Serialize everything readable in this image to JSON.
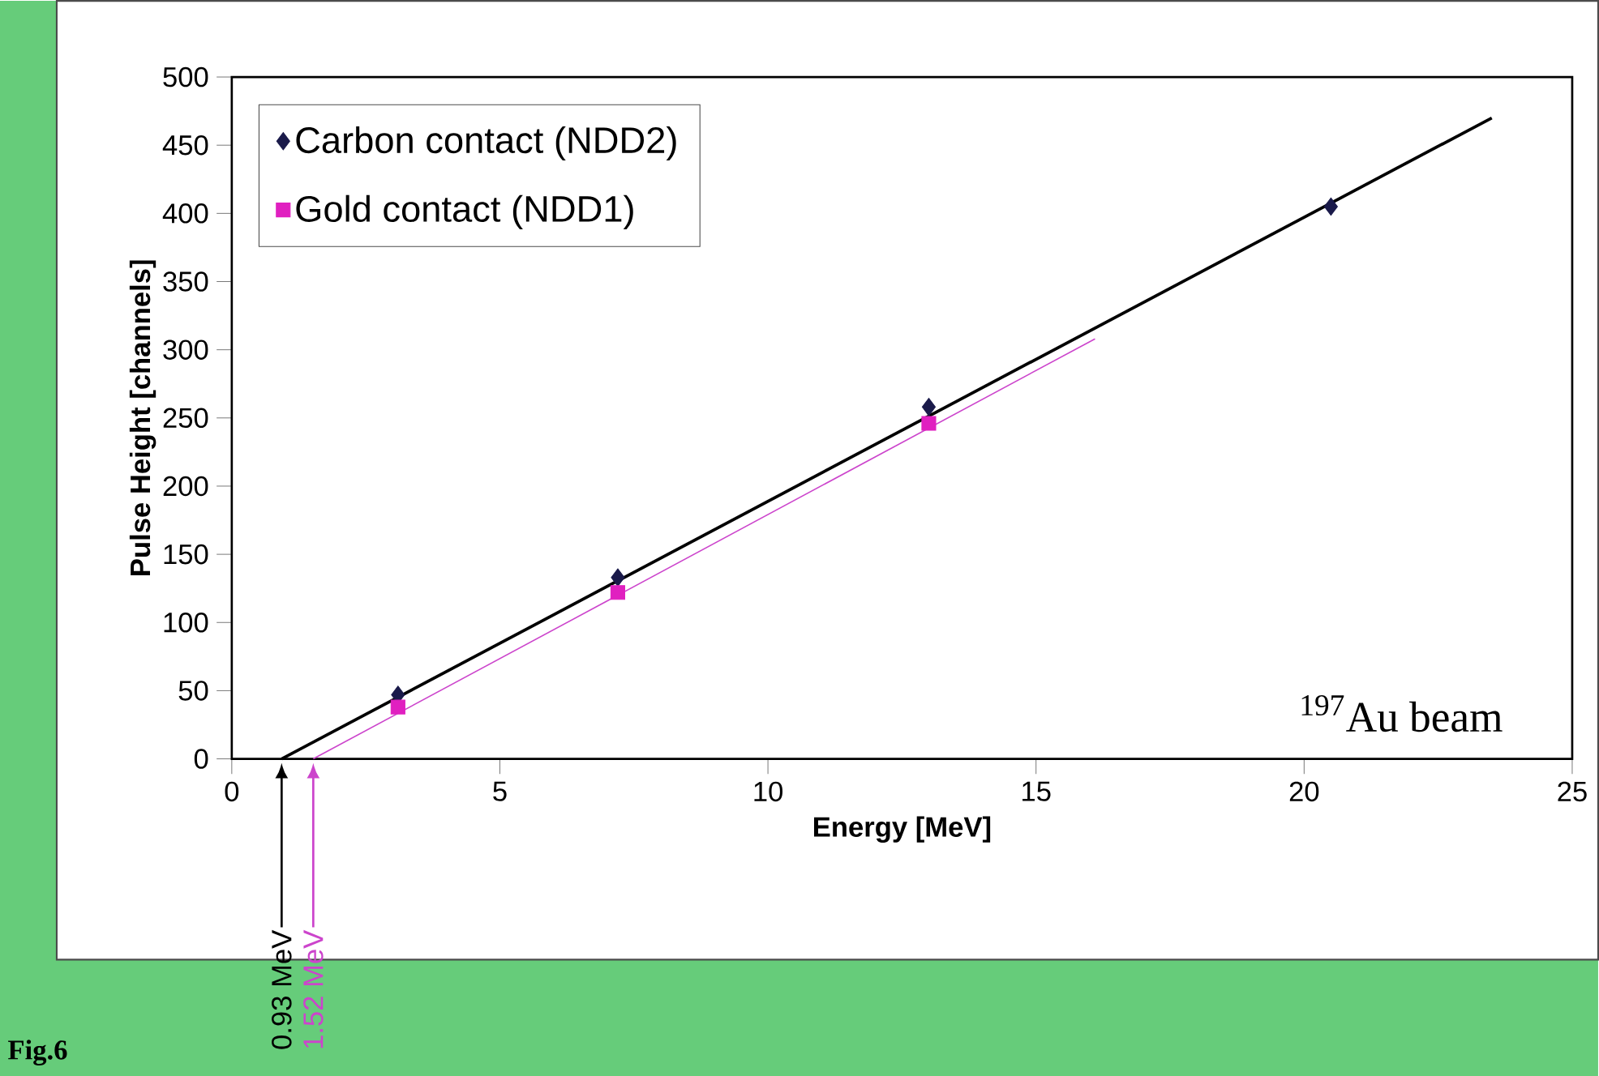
{
  "chart_data": {
    "type": "scatter",
    "xlabel": "Energy [MeV]",
    "ylabel": "Pulse Height [channels]",
    "xlim": [
      0,
      25
    ],
    "ylim": [
      0,
      500
    ],
    "xticks": [
      0,
      5,
      10,
      15,
      20,
      25
    ],
    "yticks": [
      0,
      50,
      100,
      150,
      200,
      250,
      300,
      350,
      400,
      450,
      500
    ],
    "legend": "top left",
    "series": [
      {
        "name": "Carbon contact (NDD2)",
        "color": "#1a1a4a",
        "marker": "diamond",
        "x": [
          3.1,
          7.2,
          13.0,
          20.5
        ],
        "values": [
          47,
          133,
          258,
          405
        ]
      },
      {
        "name": "Gold contact (NDD1)",
        "color": "#e020c0",
        "marker": "square",
        "x": [
          3.1,
          7.2,
          13.0
        ],
        "values": [
          38,
          122,
          246
        ]
      },
      {
        "type": "line",
        "color": "#000000",
        "marker": "none",
        "x": [
          0.93,
          23.5
        ],
        "values": [
          0,
          470
        ]
      },
      {
        "type": "line",
        "color": "#cc44cc",
        "marker": "none",
        "x": [
          1.52,
          16.1
        ],
        "values": [
          0,
          308
        ]
      }
    ],
    "annotations": [
      "0.93 MeV",
      "1.52 MeV",
      "$^{197}$Au beam",
      "Fig.6"
    ]
  }
}
